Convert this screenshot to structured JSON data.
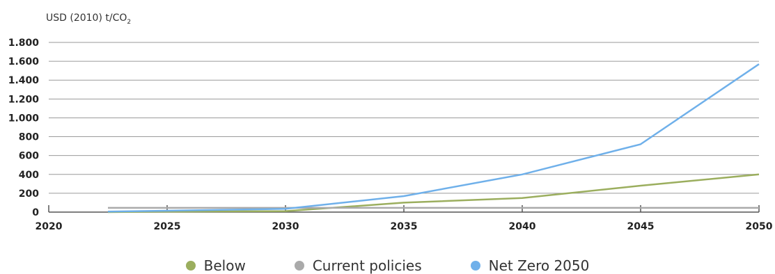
{
  "chart_data": {
    "type": "line",
    "ylabel": "USD (2010) t/CO",
    "ylabel_subscript": "2",
    "ylim": [
      0,
      1800
    ],
    "xlim": [
      2020,
      2050
    ],
    "yticks": [
      {
        "value": 0,
        "label": "0"
      },
      {
        "value": 200,
        "label": "200"
      },
      {
        "value": 400,
        "label": "400"
      },
      {
        "value": 600,
        "label": "600"
      },
      {
        "value": 800,
        "label": "800"
      },
      {
        "value": 1000,
        "label": "1.000"
      },
      {
        "value": 1200,
        "label": "1.200"
      },
      {
        "value": 1400,
        "label": "1.400"
      },
      {
        "value": 1600,
        "label": "1.600"
      },
      {
        "value": 1800,
        "label": "1.800"
      }
    ],
    "xticks": [
      {
        "value": 2020,
        "label": "2020"
      },
      {
        "value": 2025,
        "label": "2025"
      },
      {
        "value": 2030,
        "label": "2030"
      },
      {
        "value": 2035,
        "label": "2035"
      },
      {
        "value": 2040,
        "label": "2040"
      },
      {
        "value": 2045,
        "label": "2045"
      },
      {
        "value": 2050,
        "label": "2050"
      }
    ],
    "grid": true,
    "legend_position": "bottom",
    "series": [
      {
        "name": "Below",
        "color": "#9bae5e",
        "x": [
          2022.5,
          2025,
          2030,
          2035,
          2040,
          2045,
          2050
        ],
        "y": [
          0,
          5,
          10,
          100,
          150,
          280,
          400
        ]
      },
      {
        "name": "Current policies",
        "color": "#aaaaaa",
        "x": [
          2022.5,
          2025,
          2030,
          2035,
          2040,
          2045,
          2050
        ],
        "y": [
          45,
          45,
          45,
          45,
          45,
          45,
          45
        ]
      },
      {
        "name": "Net Zero 2050",
        "color": "#6fb0ea",
        "x": [
          2022.5,
          2025,
          2030,
          2035,
          2040,
          2045,
          2050
        ],
        "y": [
          5,
          15,
          35,
          170,
          400,
          720,
          1570
        ]
      }
    ]
  }
}
